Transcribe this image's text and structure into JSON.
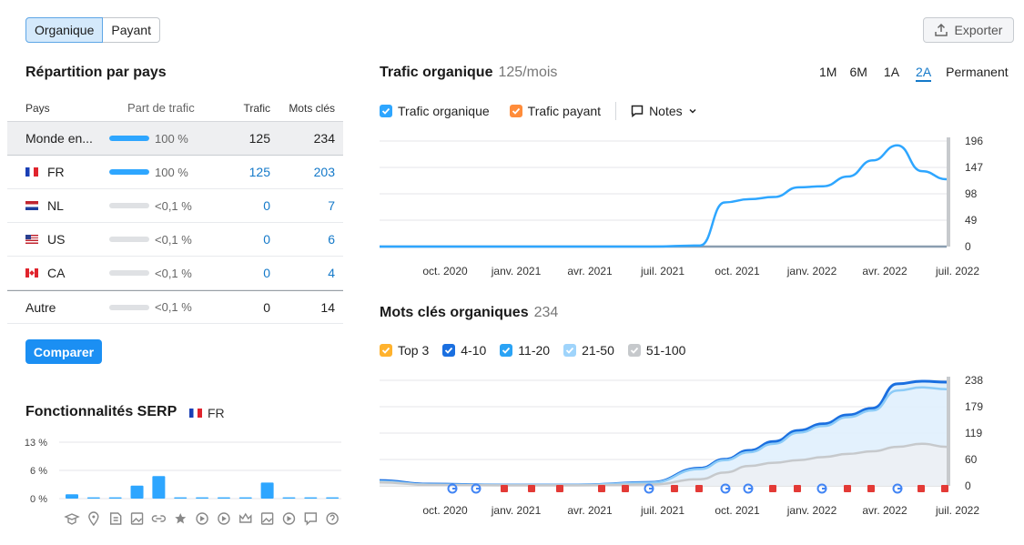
{
  "toggle": {
    "organic": "Organique",
    "paid": "Payant"
  },
  "export_label": "Exporter",
  "countries": {
    "title": "Répartition par pays",
    "headers": {
      "country": "Pays",
      "share": "Part de trafic",
      "traffic": "Trafic",
      "keywords": "Mots clés"
    },
    "rows": [
      {
        "name": "Monde en...",
        "flag": "",
        "share_pct": 100,
        "share": "100 %",
        "traffic": "125",
        "keywords": "234"
      },
      {
        "name": "FR",
        "flag": "fr",
        "share_pct": 100,
        "share": "100 %",
        "traffic": "125",
        "keywords": "203"
      },
      {
        "name": "NL",
        "flag": "nl",
        "share_pct": 0,
        "share": "<0,1 %",
        "traffic": "0",
        "keywords": "7"
      },
      {
        "name": "US",
        "flag": "us",
        "share_pct": 0,
        "share": "<0,1 %",
        "traffic": "0",
        "keywords": "6"
      },
      {
        "name": "CA",
        "flag": "ca",
        "share_pct": 0,
        "share": "<0,1 %",
        "traffic": "0",
        "keywords": "4"
      },
      {
        "name": "Autre",
        "flag": "",
        "share_pct": 0,
        "share": "<0,1 %",
        "traffic": "0",
        "keywords": "14"
      }
    ]
  },
  "compare_label": "Comparer",
  "serp": {
    "title": "Fonctionnalités SERP",
    "country": "FR",
    "yticks": [
      "13 %",
      "6 %",
      "0 %"
    ],
    "icons": [
      "graduation-cap-icon",
      "map-pin-icon",
      "document-icon",
      "image-icon",
      "link-icon",
      "star-icon",
      "play-icon",
      "video-icon",
      "crown-icon",
      "image-icon",
      "play-icon",
      "quote-icon",
      "question-icon"
    ]
  },
  "traffic": {
    "title": "Trafic organique",
    "value": "125/mois",
    "ranges": [
      "1M",
      "6M",
      "1A",
      "2A",
      "Permanent"
    ],
    "active_range": "2A",
    "legend": {
      "organic": "Trafic organique",
      "paid": "Trafic payant",
      "notes": "Notes"
    },
    "colors": {
      "organic": "#2ea6ff",
      "paid": "#ff8c3a"
    }
  },
  "keywords": {
    "title": "Mots clés organiques",
    "value": "234",
    "legend": [
      "Top 3",
      "4-10",
      "11-20",
      "21-50",
      "51-100"
    ],
    "colors": [
      "#ffb22d",
      "#1a6fe0",
      "#2aa3f5",
      "#9fd4fb",
      "#c6c9cc"
    ]
  },
  "chart_data": [
    {
      "type": "bar",
      "categories": [
        "1",
        "2",
        "3",
        "4",
        "5",
        "6",
        "7",
        "8",
        "9",
        "10",
        "11",
        "12",
        "13"
      ],
      "values": [
        1.0,
        0.3,
        0.3,
        3.0,
        5.2,
        0.3,
        0.3,
        0.3,
        0.3,
        3.7,
        0.3,
        0.3,
        0.3
      ],
      "yticks": [
        "13 %",
        "6 %",
        "0 %"
      ],
      "ylim": [
        0,
        13
      ]
    },
    {
      "type": "line",
      "x": [
        "2020-08",
        "2020-10",
        "2021-01",
        "2021-04",
        "2021-07",
        "2021-09",
        "2021-10",
        "2021-11",
        "2021-12",
        "2022-01",
        "2022-02",
        "2022-03",
        "2022-04",
        "2022-05",
        "2022-06",
        "2022-07"
      ],
      "xticks": [
        "oct. 2020",
        "janv. 2021",
        "avr. 2021",
        "juil. 2021",
        "oct. 2021",
        "janv. 2022",
        "avr. 2022",
        "juil. 2022"
      ],
      "yticks": [
        "196",
        "147",
        "98",
        "49",
        "0"
      ],
      "series": [
        {
          "name": "Trafic organique",
          "values": [
            0,
            0,
            0,
            0,
            0,
            2,
            82,
            88,
            92,
            110,
            112,
            130,
            160,
            188,
            140,
            125
          ]
        },
        {
          "name": "Trafic payant",
          "values": [
            0,
            0,
            0,
            0,
            0,
            0,
            0,
            0,
            0,
            0,
            0,
            0,
            0,
            0,
            0,
            0
          ]
        }
      ],
      "ylim": [
        0,
        196
      ]
    },
    {
      "type": "area",
      "x": [
        "2020-08",
        "2020-10",
        "2021-01",
        "2021-04",
        "2021-07",
        "2021-09",
        "2021-10",
        "2021-11",
        "2021-12",
        "2022-01",
        "2022-02",
        "2022-03",
        "2022-04",
        "2022-05",
        "2022-06",
        "2022-07"
      ],
      "xticks": [
        "oct. 2020",
        "janv. 2021",
        "avr. 2021",
        "juil. 2021",
        "oct. 2021",
        "janv. 2022",
        "avr. 2022",
        "juil. 2022"
      ],
      "yticks": [
        "238",
        "179",
        "119",
        "60",
        "0"
      ],
      "series": [
        {
          "name": "4-10",
          "values": [
            12,
            4,
            2,
            2,
            8,
            40,
            60,
            80,
            100,
            125,
            140,
            160,
            175,
            230,
            236,
            234
          ]
        },
        {
          "name": "11-20",
          "values": [
            10,
            3,
            2,
            2,
            7,
            38,
            58,
            76,
            95,
            120,
            135,
            155,
            170,
            215,
            222,
            218
          ]
        },
        {
          "name": "51-100",
          "values": [
            8,
            2,
            1,
            1,
            3,
            15,
            30,
            45,
            52,
            58,
            65,
            72,
            78,
            88,
            95,
            88
          ]
        }
      ],
      "ylim": [
        0,
        238
      ]
    }
  ]
}
